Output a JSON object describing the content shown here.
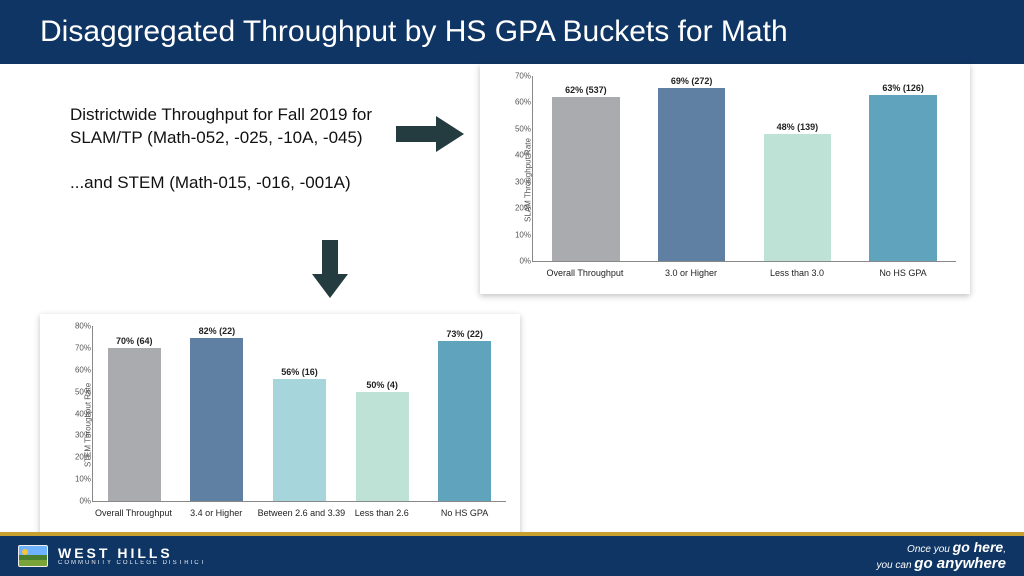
{
  "title": "Disaggregated Throughput by HS GPA Buckets for Math",
  "desc": {
    "p1": "Districtwide Throughput for Fall 2019 for SLAM/TP (Math-052, -025, -10A, -045)",
    "p2": "...and STEM (Math-015, -016, -001A)"
  },
  "arrow_color": "#243b3f",
  "chart_top": {
    "type": "bar",
    "ylabel": "SLAM Throughput Rate",
    "ylim": [
      0,
      70
    ],
    "ytick_step": 10,
    "background": "#ffffff",
    "bar_width_pct": 64,
    "label_fontsize": 9,
    "cats": [
      "Overall Throughput",
      "3.0 or Higher",
      "Less than 3.0",
      "No HS GPA"
    ],
    "values": [
      62,
      69,
      48,
      63
    ],
    "display_labels": [
      "62% (537)",
      "69% (272)",
      "48% (139)",
      "63% (126)"
    ],
    "colors": [
      "#a9abae",
      "#5f7fa3",
      "#bfe2d7",
      "#5fa3bd"
    ]
  },
  "chart_bottom": {
    "type": "bar",
    "ylabel": "STEM Throughput Rate",
    "ylim": [
      0,
      80
    ],
    "ytick_step": 10,
    "background": "#ffffff",
    "bar_width_pct": 64,
    "label_fontsize": 9,
    "cats": [
      "Overall Throughput",
      "3.4 or Higher",
      "Between 2.6 and 3.39",
      "Less than 2.6",
      "No HS GPA"
    ],
    "values": [
      70,
      82,
      56,
      50,
      73
    ],
    "display_labels": [
      "70% (64)",
      "82% (22)",
      "56% (16)",
      "50% (4)",
      "73% (22)"
    ],
    "colors": [
      "#a9abae",
      "#5f7fa3",
      "#a6d6db",
      "#bfe2d7",
      "#5fa3bd"
    ]
  },
  "footer": {
    "brand_top": "WEST HILLS",
    "brand_bottom": "COMMUNITY COLLEGE DISTRICT",
    "motto1_a": "Once you ",
    "motto1_b": "go here",
    "motto1_c": ",",
    "motto2_a": "you can ",
    "motto2_b": "go anywhere"
  }
}
